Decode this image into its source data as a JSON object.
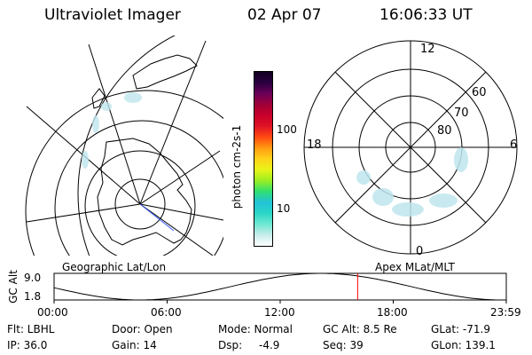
{
  "header": {
    "instrument": "Ultraviolet Imager",
    "date": "02 Apr 07",
    "time": "16:06:33 UT"
  },
  "colorbar": {
    "unit_label": "photon cm-2s-1",
    "tick_labels": [
      "100",
      "10"
    ],
    "colors": [
      "#ffffff",
      "#c8ecec",
      "#6ee8d2",
      "#2ad6c6",
      "#22c2d8",
      "#30e070",
      "#9aee22",
      "#e8f418",
      "#ffd21a",
      "#ff9c10",
      "#ff4a12",
      "#e01226",
      "#c8002a",
      "#a00038",
      "#6a0058",
      "#2a0040",
      "#100020"
    ]
  },
  "polar_plot": {
    "latitude_labels": [
      "80",
      "70",
      "60"
    ],
    "mlt_labels": [
      "12",
      "18",
      "6",
      "0"
    ]
  },
  "map_labels": {
    "left": "Geographic Lat/Lon",
    "right": "Apex MLat/MLT"
  },
  "timeline": {
    "ylabel": "GC Alt",
    "ytick_labels": [
      "9.0",
      "1.8"
    ],
    "xtick_labels": [
      "00:00",
      "06:00",
      "12:00",
      "18:00",
      "23:59"
    ],
    "marker_time": "16:06",
    "marker_color": "#ff0000"
  },
  "info": {
    "filter": "Flt: LBHL",
    "ip": "IP: 36.0",
    "door": "Door: Open",
    "gain": "Gain: 14",
    "mode": "Mode: Normal",
    "dsp_label": "Dsp:",
    "dsp_value": "-4.9",
    "gc_alt": "GC Alt: 8.5 Re",
    "seq": "Seq: 39",
    "glat": "GLat: -71.9",
    "glon": "GLon: 139.1"
  }
}
